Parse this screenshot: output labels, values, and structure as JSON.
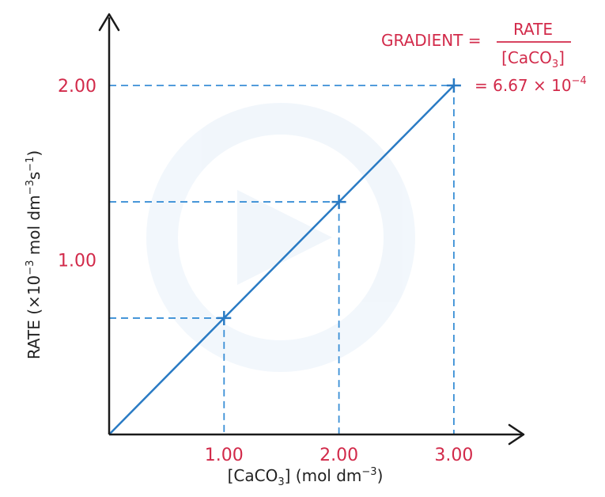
{
  "chart_data": {
    "type": "line",
    "title": "",
    "xlabel": "[CaCO3] (mol dm⁻³)",
    "ylabel": "RATE (×10⁻³ mol dm⁻³ s⁻¹)",
    "x_ticks": [
      "1.00",
      "2.00",
      "3.00"
    ],
    "y_ticks": [
      "1.00",
      "2.00"
    ],
    "xlim": [
      0,
      3.45
    ],
    "ylim": [
      0,
      2.44
    ],
    "grid": false,
    "colors": {
      "line": "#2a7bc4",
      "guide": "#3a8fd6",
      "accent": "#d22a4a",
      "axis": "#1a1a1a"
    },
    "series": [
      {
        "x": [
          0,
          1.0,
          2.0,
          3.0
        ],
        "y": [
          0,
          0.667,
          1.333,
          2.0
        ]
      }
    ],
    "points": [
      {
        "x": 1.0,
        "y": 0.667
      },
      {
        "x": 2.0,
        "y": 1.333
      },
      {
        "x": 3.0,
        "y": 2.0
      }
    ],
    "annotation": {
      "lhs": "GRADIENT =",
      "numerator": "RATE",
      "denominator": "[CaCO3]",
      "result": "= 6.67 × 10⁻⁴"
    }
  }
}
